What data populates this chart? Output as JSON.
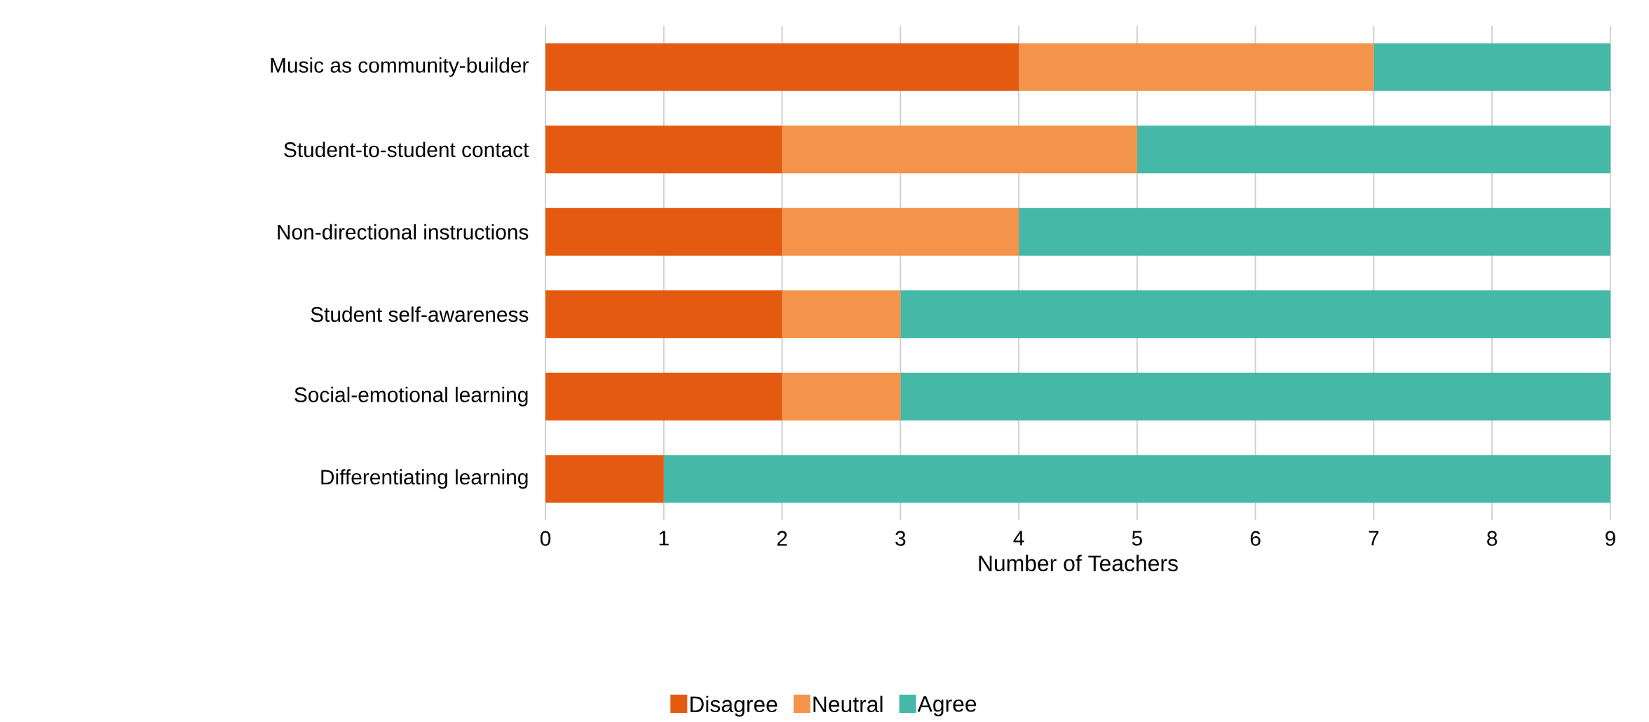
{
  "chart_data": {
    "type": "bar",
    "orientation": "horizontal",
    "stacked": true,
    "categories": [
      "Music as community-builder",
      "Student-to-student contact",
      "Non-directional instructions",
      "Student self-awareness",
      "Social-emotional learning",
      "Differentiating learning"
    ],
    "series": [
      {
        "name": "Disagree",
        "color": "#e55a11",
        "values": [
          4,
          2,
          2,
          2,
          2,
          1
        ]
      },
      {
        "name": "Neutral",
        "color": "#f4944a",
        "values": [
          3,
          3,
          2,
          1,
          1,
          0
        ]
      },
      {
        "name": "Agree",
        "color": "#45b8a8",
        "values": [
          2,
          4,
          5,
          6,
          6,
          8
        ]
      }
    ],
    "xlabel": "Number of Teachers",
    "xlim": [
      0,
      9
    ],
    "xticks": [
      0,
      1,
      2,
      3,
      4,
      5,
      6,
      7,
      8,
      9
    ],
    "grid": "x",
    "legend": "bottom"
  }
}
